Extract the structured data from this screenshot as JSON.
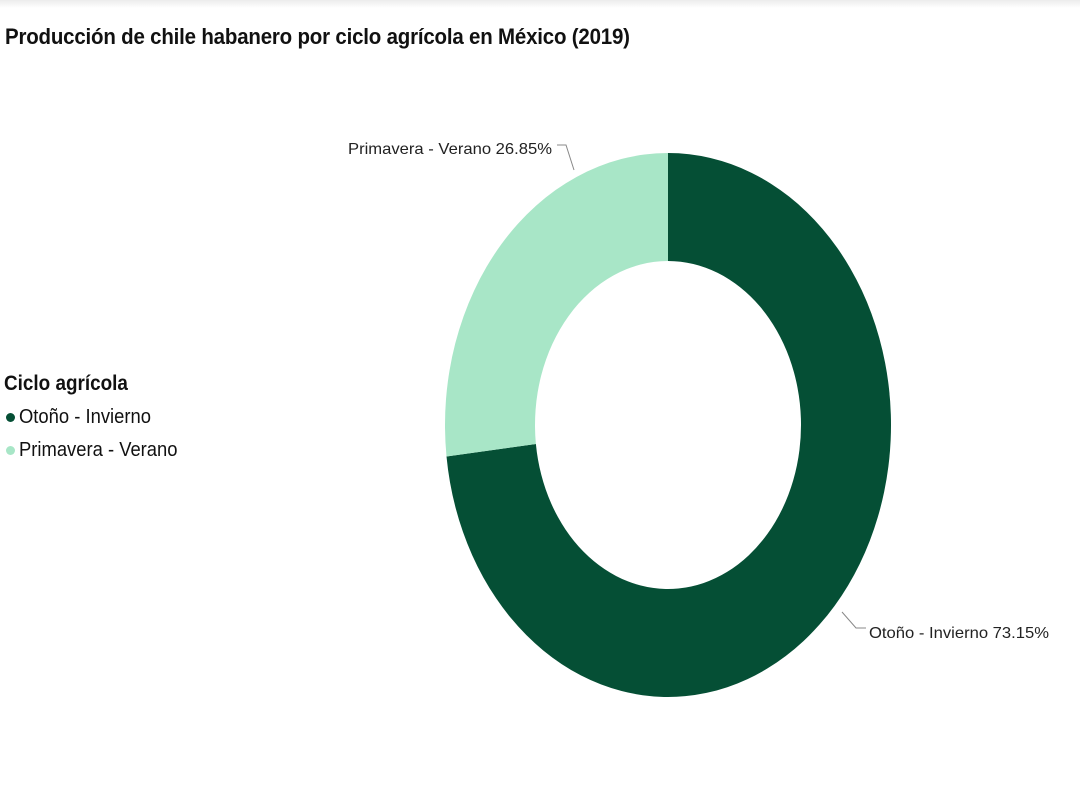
{
  "title": "Producción de chile habanero por ciclo agrícola en México (2019)",
  "legend": {
    "title": "Ciclo agrícola",
    "items": [
      {
        "label": "Otoño - Invierno",
        "color": "#054f35"
      },
      {
        "label": "Primavera - Verano",
        "color": "#a8e6c7"
      }
    ]
  },
  "labels": {
    "otono": "Otoño - Invierno 73.15%",
    "primavera": "Primavera - Verano 26.85%"
  },
  "chart_data": {
    "type": "pie",
    "variant": "donut",
    "title": "Producción de chile habanero por ciclo agrícola en México (2019)",
    "legend_title": "Ciclo agrícola",
    "legend_position": "left",
    "categories": [
      "Otoño - Invierno",
      "Primavera - Verano"
    ],
    "values": [
      73.15,
      26.85
    ],
    "unit": "%",
    "colors": [
      "#054f35",
      "#a8e6c7"
    ],
    "data_labels": [
      "Otoño - Invierno 73.15%",
      "Primavera - Verano 26.85%"
    ]
  }
}
